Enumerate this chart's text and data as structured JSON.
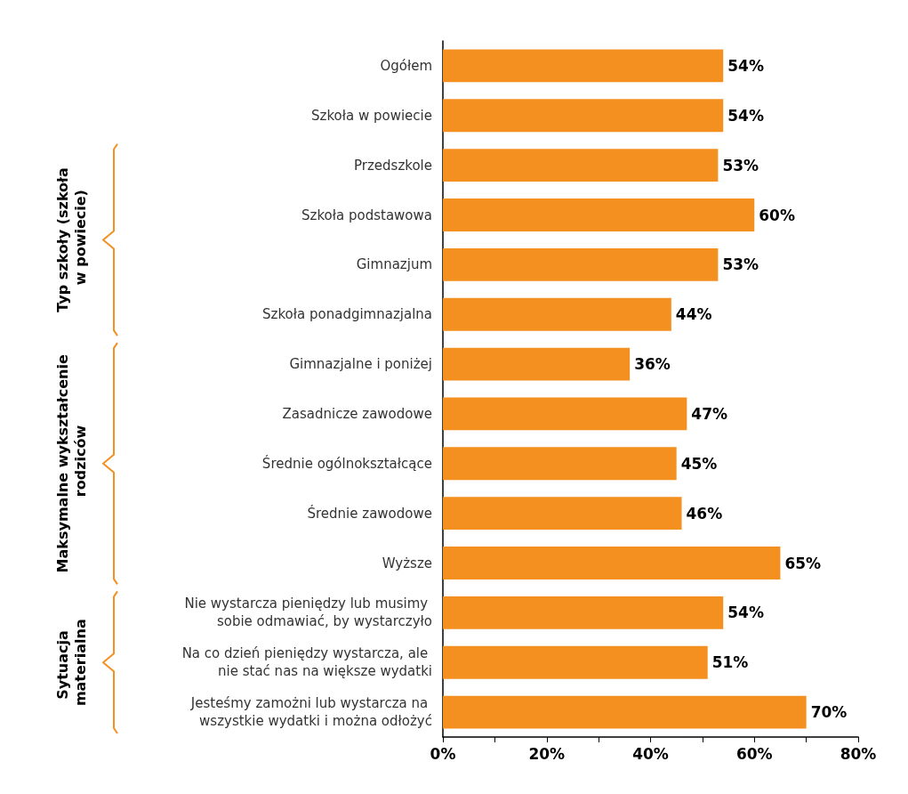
{
  "chart_data": {
    "type": "bar",
    "orientation": "horizontal",
    "categories": [
      "Ogółem",
      "Szkoła w powiecie",
      "Przedszkole",
      "Szkoła podstawowa",
      "Gimnazjum",
      "Szkoła ponadgimnazjalna",
      "Gimnazjalne i poniżej",
      "Zasadnicze zawodowe",
      "Średnie ogólnokształcące",
      "Średnie zawodowe",
      "Wyższe",
      "Nie wystarcza pieniędzy lub musimy sobie odmawiać, by wystarczyło",
      "Na co dzień pieniędzy wystarcza, ale nie stać nas na większe wydatki",
      "Jesteśmy zamożni lub wystarcza na wszystkie wydatki i można odłożyć"
    ],
    "values": [
      54,
      54,
      53,
      60,
      53,
      44,
      36,
      47,
      45,
      46,
      65,
      54,
      51,
      70
    ],
    "value_labels": [
      "54%",
      "54%",
      "53%",
      "60%",
      "53%",
      "44%",
      "36%",
      "47%",
      "45%",
      "46%",
      "65%",
      "54%",
      "51%",
      "70%"
    ],
    "color": "#f39020",
    "xlim": [
      0,
      80
    ],
    "xticks": [
      {
        "value": 0,
        "label": "0%"
      },
      {
        "value": 10,
        "label": null
      },
      {
        "value": 20,
        "label": "20%"
      },
      {
        "value": 30,
        "label": null
      },
      {
        "value": 40,
        "label": "40%"
      },
      {
        "value": 50,
        "label": null
      },
      {
        "value": 60,
        "label": "60%"
      },
      {
        "value": 70,
        "label": null
      },
      {
        "value": 80,
        "label": "80%"
      }
    ],
    "annotations": [
      "Typ szkoły (szkoła w powiecie)",
      "Maksymalne wykształcenie rodziców",
      "Sytuacja materialna"
    ],
    "grid": false
  }
}
